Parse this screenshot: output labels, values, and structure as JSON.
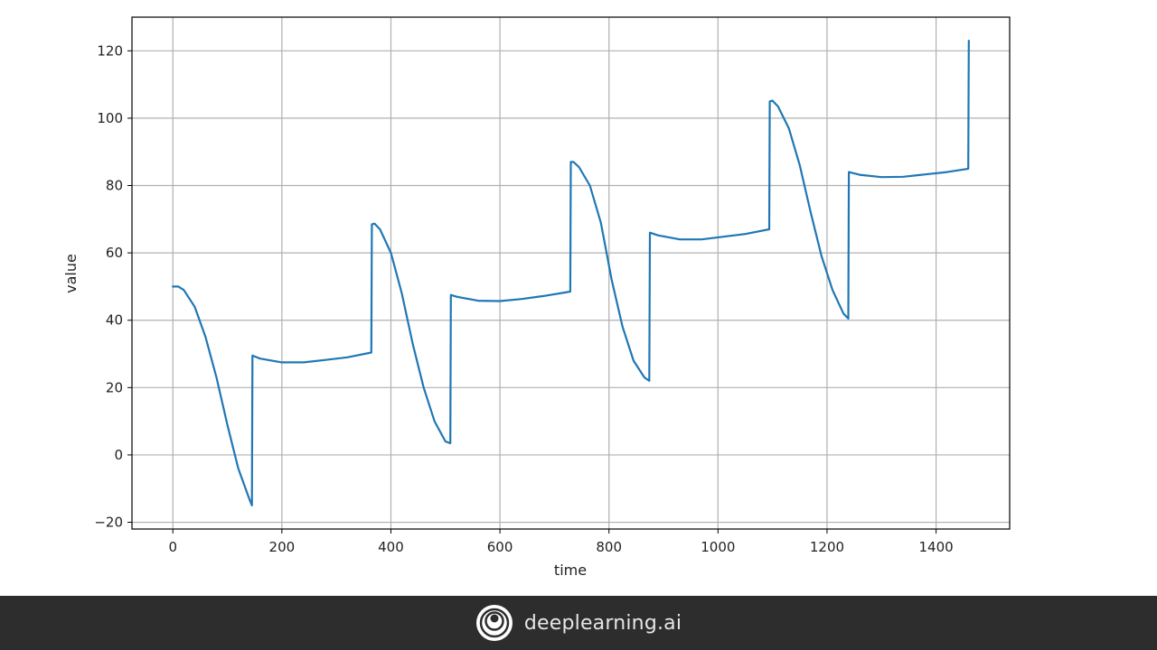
{
  "chart_data": {
    "type": "line",
    "xlabel": "time",
    "ylabel": "value",
    "xlim": [
      -75,
      1535
    ],
    "ylim": [
      -22,
      130
    ],
    "x_ticks": [
      0,
      200,
      400,
      600,
      800,
      1000,
      1200,
      1400
    ],
    "y_ticks": [
      -20,
      0,
      20,
      40,
      60,
      80,
      100,
      120
    ],
    "x_tick_labels": [
      "0",
      "200",
      "400",
      "600",
      "800",
      "1000",
      "1200",
      "1400"
    ],
    "y_tick_labels": [
      "−20",
      "0",
      "20",
      "40",
      "60",
      "80",
      "100",
      "120"
    ],
    "grid": true,
    "series": [
      {
        "color": "#1f77b4",
        "x": [
          0,
          10,
          20,
          40,
          60,
          80,
          100,
          120,
          140,
          145,
          146,
          160,
          200,
          240,
          280,
          320,
          364,
          365,
          370,
          380,
          400,
          420,
          440,
          460,
          480,
          500,
          509,
          510,
          520,
          560,
          600,
          640,
          680,
          729,
          730,
          735,
          745,
          765,
          785,
          805,
          825,
          845,
          865,
          874,
          875,
          890,
          930,
          970,
          1010,
          1050,
          1094,
          1095,
          1100,
          1110,
          1130,
          1150,
          1170,
          1190,
          1210,
          1230,
          1239,
          1240,
          1260,
          1300,
          1340,
          1380,
          1420,
          1459,
          1460
        ],
        "y": [
          50,
          50,
          49,
          44,
          35,
          23,
          9,
          -4,
          -13,
          -15,
          29.5,
          28.6,
          27.5,
          27.5,
          28.2,
          29,
          30.4,
          68.5,
          68.7,
          67,
          60,
          48,
          33,
          20,
          10,
          4,
          3.5,
          47.5,
          47,
          45.8,
          45.7,
          46.3,
          47.2,
          48.5,
          87,
          87,
          85.5,
          80,
          69,
          52,
          38,
          28,
          23,
          22,
          66,
          65.2,
          64,
          64,
          64.8,
          65.6,
          67,
          105,
          105.2,
          103.5,
          97,
          86,
          72,
          59,
          49,
          42,
          40.5,
          84,
          83.2,
          82.5,
          82.6,
          83.3,
          84,
          85,
          123
        ]
      }
    ]
  },
  "footer": {
    "brand_name": "deeplearning.ai",
    "logo_icon": "deeplearning-ai-logo-icon",
    "background": "#2d2d2d"
  }
}
